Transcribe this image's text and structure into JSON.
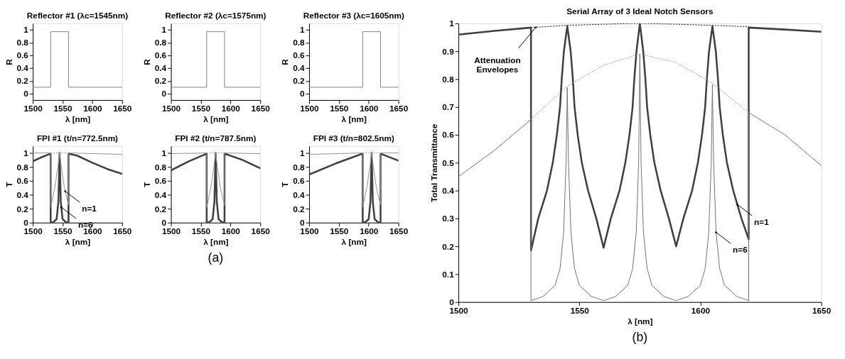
{
  "chart_data": [
    {
      "type": "line",
      "title": "Reflector #1 (λc=1545nm)",
      "xlabel": "λ [nm]",
      "ylabel": "R",
      "xlim": [
        1500,
        1650
      ],
      "xticks": [
        1500,
        1550,
        1600,
        1650
      ],
      "ylim": [
        -0.1,
        1.1
      ],
      "yticks": [
        0,
        0.2,
        0.4,
        0.6,
        0.8,
        1
      ],
      "grid": false,
      "legend": false,
      "series": [
        {
          "color": "#808080",
          "x": [
            1500,
            1530,
            1530,
            1560,
            1560,
            1650
          ],
          "values": [
            0.1,
            0.1,
            0.97,
            0.97,
            0.1,
            0.1
          ]
        }
      ]
    },
    {
      "type": "line",
      "title": "Reflector #2 (λc=1575nm)",
      "xlabel": "λ [nm]",
      "ylabel": "R",
      "xlim": [
        1500,
        1650
      ],
      "xticks": [
        1500,
        1550,
        1600,
        1650
      ],
      "ylim": [
        -0.1,
        1.1
      ],
      "yticks": [
        0,
        0.2,
        0.4,
        0.6,
        0.8,
        1
      ],
      "grid": false,
      "legend": false,
      "series": [
        {
          "color": "#808080",
          "x": [
            1500,
            1560,
            1560,
            1590,
            1590,
            1650
          ],
          "values": [
            0.1,
            0.1,
            0.97,
            0.97,
            0.1,
            0.1
          ]
        }
      ]
    },
    {
      "type": "line",
      "title": "Reflector #3 (λc=1605nm)",
      "xlabel": "λ [nm]",
      "ylabel": "R",
      "xlim": [
        1500,
        1650
      ],
      "xticks": [
        1500,
        1550,
        1600,
        1650
      ],
      "ylim": [
        -0.1,
        1.1
      ],
      "yticks": [
        0,
        0.2,
        0.4,
        0.6,
        0.8,
        1
      ],
      "grid": false,
      "legend": false,
      "series": [
        {
          "color": "#808080",
          "x": [
            1500,
            1590,
            1590,
            1620,
            1620,
            1650
          ],
          "values": [
            0.1,
            0.1,
            0.97,
            0.97,
            0.1,
            0.1
          ]
        }
      ]
    },
    {
      "type": "line",
      "title": "FPI #1 (t/n=772.5nm)",
      "xlabel": "λ [nm]",
      "ylabel": "T",
      "xlim": [
        1500,
        1650
      ],
      "xticks": [
        1500,
        1550,
        1600,
        1650
      ],
      "ylim": [
        0,
        1.1
      ],
      "yticks": [
        0,
        0.2,
        0.4,
        0.6,
        0.8,
        1
      ],
      "grid": false,
      "legend": false,
      "series": [
        {
          "color": "#404040",
          "x": [
            1500,
            1515,
            1530,
            1530,
            1535,
            1540,
            1543,
            1545,
            1547,
            1550,
            1555,
            1560,
            1560,
            1575,
            1600,
            1625,
            1650
          ],
          "values": [
            0.88,
            0.94,
            0.99,
            0,
            0.01,
            0.05,
            0.3,
            1,
            0.3,
            0.05,
            0.01,
            0,
            0.99,
            0.96,
            0.86,
            0.77,
            0.7
          ]
        },
        {
          "color": "#909090",
          "x": [
            1500,
            1530,
            1530,
            1537,
            1542,
            1545,
            1548,
            1553,
            1560,
            1560,
            1650
          ],
          "values": [
            1,
            1,
            0.22,
            0.5,
            0.8,
            1,
            0.8,
            0.5,
            0.25,
            1,
            0.98
          ]
        },
        {
          "color": "#a0a0a0",
          "line_style": "dotted",
          "x": [
            1530,
            1560
          ],
          "values": [
            1,
            1
          ]
        }
      ],
      "annotations": [
        {
          "text": "n=1",
          "x": 1554.4,
          "y": 0.45
        },
        {
          "text": "n=6",
          "x": 1548,
          "y": 0.22
        }
      ]
    },
    {
      "type": "line",
      "title": "FPI #2 (t/n=787.5nm)",
      "xlabel": "λ [nm]",
      "ylabel": "T",
      "xlim": [
        1500,
        1650
      ],
      "xticks": [
        1500,
        1550,
        1600,
        1650
      ],
      "ylim": [
        0,
        1.1
      ],
      "yticks": [
        0,
        0.2,
        0.4,
        0.6,
        0.8,
        1
      ],
      "grid": false,
      "legend": false,
      "series": [
        {
          "color": "#404040",
          "x": [
            1500,
            1530,
            1560,
            1560,
            1565,
            1570,
            1573,
            1575,
            1577,
            1580,
            1585,
            1590,
            1590,
            1620,
            1650
          ],
          "values": [
            0.75,
            0.88,
            0.99,
            0,
            0.01,
            0.05,
            0.3,
            1,
            0.3,
            0.05,
            0.01,
            0,
            0.99,
            0.9,
            0.78
          ]
        },
        {
          "color": "#909090",
          "x": [
            1500,
            1560,
            1560,
            1567,
            1572,
            1575,
            1578,
            1583,
            1590,
            1590,
            1650
          ],
          "values": [
            0.99,
            1,
            0.22,
            0.5,
            0.8,
            1,
            0.8,
            0.5,
            0.25,
            1,
            0.99
          ]
        },
        {
          "color": "#a0a0a0",
          "line_style": "dotted",
          "x": [
            1560,
            1590
          ],
          "values": [
            1,
            1
          ]
        }
      ],
      "annotations": [
        "(a)"
      ]
    },
    {
      "type": "line",
      "title": "FPI #3 (t/n=802.5nm)",
      "xlabel": "λ [nm]",
      "ylabel": "T",
      "xlim": [
        1500,
        1650
      ],
      "xticks": [
        1500,
        1550,
        1600,
        1650
      ],
      "ylim": [
        0,
        1.1
      ],
      "yticks": [
        0,
        0.2,
        0.4,
        0.6,
        0.8,
        1
      ],
      "grid": false,
      "legend": false,
      "series": [
        {
          "color": "#404040",
          "x": [
            1500,
            1545,
            1590,
            1590,
            1595,
            1600,
            1603,
            1605,
            1607,
            1610,
            1615,
            1620,
            1620,
            1650
          ],
          "values": [
            0.69,
            0.85,
            0.99,
            0,
            0.01,
            0.05,
            0.3,
            1,
            0.3,
            0.05,
            0.01,
            0,
            0.99,
            0.89
          ]
        },
        {
          "color": "#909090",
          "x": [
            1500,
            1590,
            1590,
            1597,
            1602,
            1605,
            1608,
            1613,
            1620,
            1620,
            1650
          ],
          "values": [
            0.98,
            1,
            0.22,
            0.5,
            0.8,
            1,
            0.8,
            0.5,
            0.25,
            1,
            1
          ]
        },
        {
          "color": "#a0a0a0",
          "line_style": "dotted",
          "x": [
            1590,
            1620
          ],
          "values": [
            1,
            1
          ]
        }
      ]
    },
    {
      "type": "line",
      "title": "Serial Array of 3 Ideal Notch Sensors",
      "xlabel": "λ [nm]",
      "ylabel": "Total Transmittance",
      "xlim": [
        1500,
        1650
      ],
      "xticks": [
        1500,
        1550,
        1600,
        1650
      ],
      "ylim": [
        0,
        1
      ],
      "yticks": [
        0,
        0.1,
        0.2,
        0.3,
        0.4,
        0.5,
        0.6,
        0.7,
        0.8,
        0.9,
        1
      ],
      "grid": false,
      "legend": false,
      "series": [
        {
          "color": "#404040",
          "x": [
            1500,
            1515,
            1530,
            1530,
            1533,
            1536.6,
            1539,
            1540.7,
            1542,
            1542.7,
            1543.6,
            1545,
            1546.4,
            1547.3,
            1548,
            1549.3,
            1551,
            1553.6,
            1557,
            1560,
            1563,
            1566.6,
            1569,
            1570.7,
            1572,
            1572.7,
            1573.6,
            1575,
            1576.4,
            1577.3,
            1578,
            1579.3,
            1581,
            1583.6,
            1587,
            1590,
            1593,
            1596.6,
            1599,
            1600.7,
            1602,
            1602.7,
            1603.6,
            1605,
            1606.4,
            1607.3,
            1608,
            1609.3,
            1611,
            1613.6,
            1617,
            1620,
            1620,
            1635,
            1650
          ],
          "values": [
            0.96,
            0.973,
            0.985,
            0.185,
            0.3,
            0.4,
            0.5,
            0.6,
            0.7,
            0.8,
            0.9,
            0.99,
            0.9,
            0.8,
            0.7,
            0.6,
            0.5,
            0.4,
            0.3,
            0.195,
            0.3,
            0.4,
            0.5,
            0.6,
            0.7,
            0.8,
            0.9,
            1,
            0.9,
            0.8,
            0.7,
            0.6,
            0.5,
            0.4,
            0.3,
            0.2,
            0.3,
            0.4,
            0.5,
            0.6,
            0.7,
            0.8,
            0.9,
            0.99,
            0.9,
            0.8,
            0.7,
            0.6,
            0.5,
            0.4,
            0.3,
            0.225,
            0.985,
            0.978,
            0.97
          ]
        },
        {
          "color": "#707070",
          "x": [
            1500,
            1515,
            1530,
            1530,
            1535,
            1540,
            1542,
            1543.5,
            1544.5,
            1545,
            1545.5,
            1546.5,
            1548,
            1550,
            1555,
            1560,
            1565,
            1570,
            1572,
            1573.5,
            1574.5,
            1575,
            1575.5,
            1576.5,
            1578,
            1580,
            1585,
            1590,
            1595,
            1600,
            1602,
            1603.5,
            1604.5,
            1605,
            1605.5,
            1606.5,
            1608,
            1610,
            1615,
            1620,
            1620,
            1635,
            1650
          ],
          "values": [
            0.45,
            0.545,
            0.655,
            0.005,
            0.02,
            0.06,
            0.12,
            0.25,
            0.5,
            0.77,
            0.5,
            0.25,
            0.12,
            0.06,
            0.02,
            0.005,
            0.02,
            0.06,
            0.12,
            0.25,
            0.5,
            0.89,
            0.5,
            0.25,
            0.12,
            0.06,
            0.02,
            0.005,
            0.02,
            0.06,
            0.12,
            0.25,
            0.5,
            0.78,
            0.5,
            0.25,
            0.12,
            0.06,
            0.02,
            0.005,
            0.68,
            0.6,
            0.49
          ]
        },
        {
          "color": "#a0a0a0",
          "line_style": "dotted",
          "x": [
            1530,
            1545,
            1560,
            1575,
            1590,
            1605,
            1620
          ],
          "values": [
            0.655,
            0.775,
            0.85,
            0.89,
            0.86,
            0.785,
            0.68
          ]
        },
        {
          "color": "#202020",
          "line_style": "dotted",
          "x": [
            1530,
            1545,
            1560,
            1575,
            1590,
            1605,
            1620
          ],
          "values": [
            0.985,
            0.993,
            0.997,
            1,
            0.997,
            0.993,
            0.988
          ]
        }
      ],
      "annotations": [
        {
          "text": "Attenuation Envelopes",
          "x": 1532,
          "y": 0.986
        },
        {
          "text": "n=1",
          "x": 1615.3,
          "y": 0.35
        },
        {
          "text": "n=6",
          "x": 1606.5,
          "y": 0.25
        },
        "(b)"
      ]
    }
  ]
}
